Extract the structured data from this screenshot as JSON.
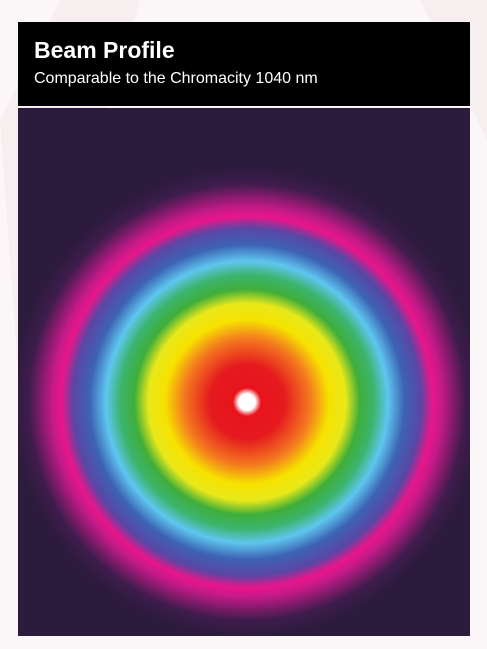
{
  "header": {
    "title": "Beam Profile",
    "subtitle": "Comparable to the Chromacity 1040 nm"
  }
}
